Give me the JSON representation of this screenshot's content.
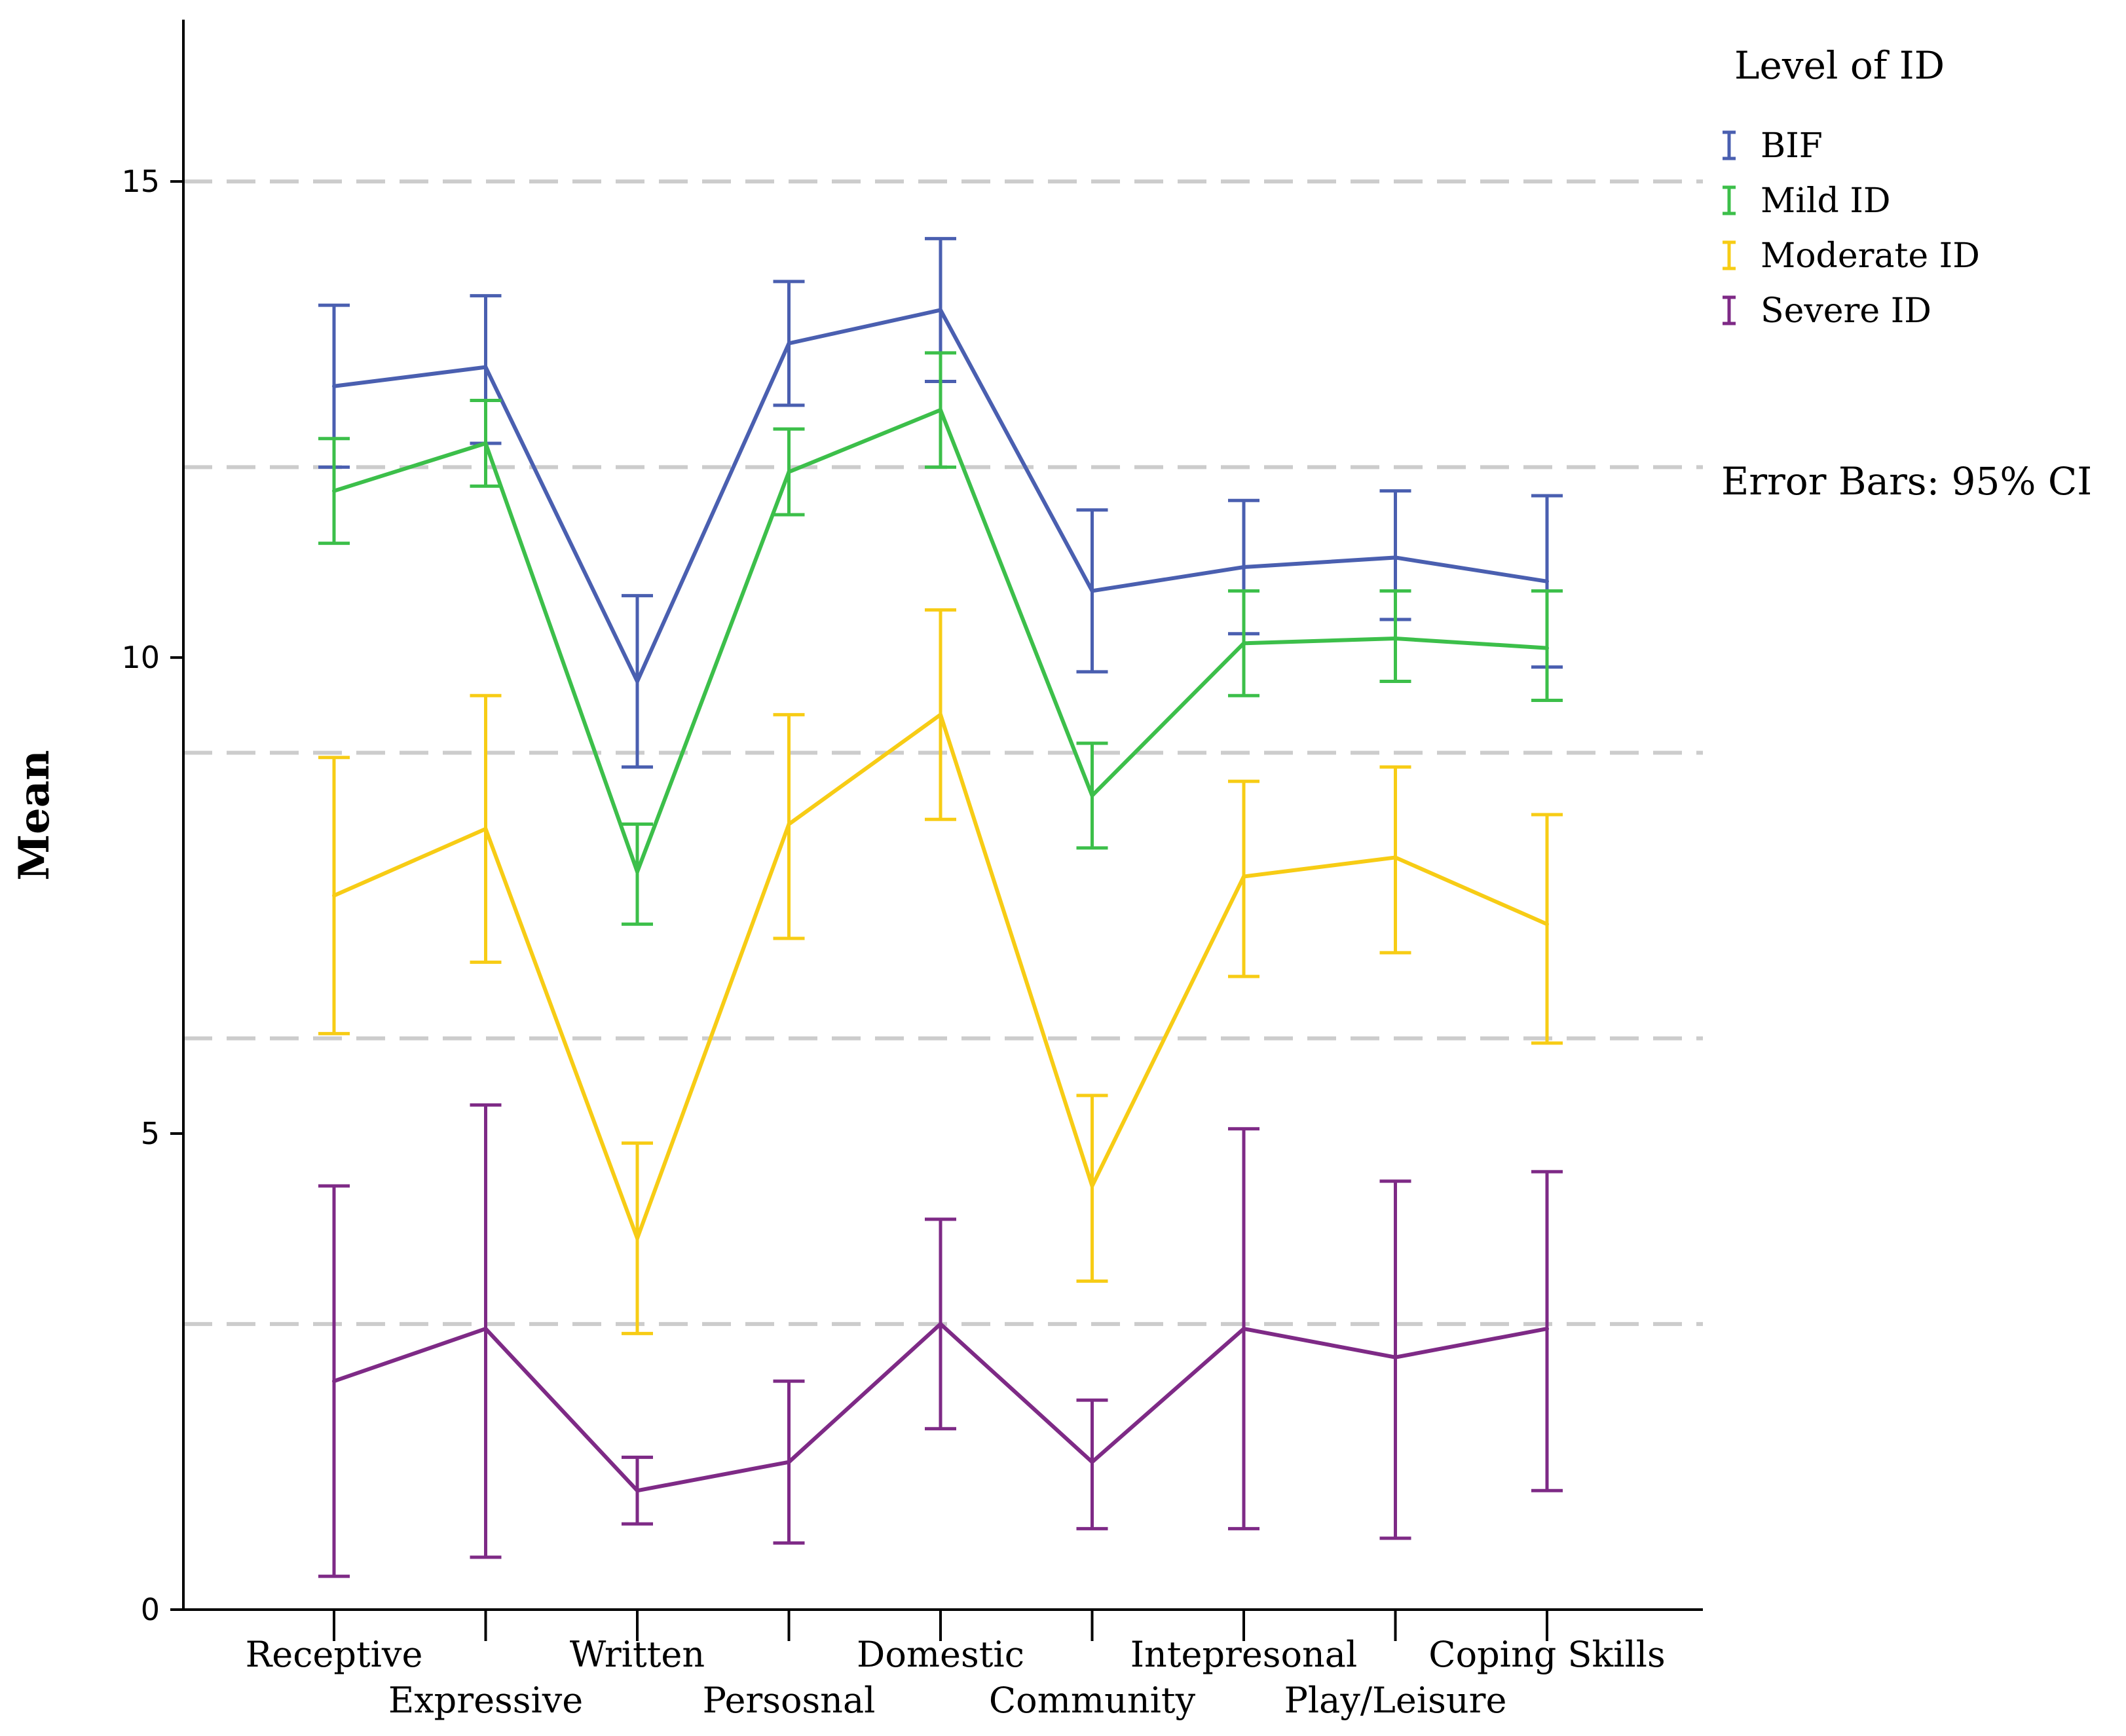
{
  "chart_data": {
    "type": "line",
    "title": "",
    "xlabel": "",
    "ylabel": "Mean",
    "ylim": [
      0,
      16.7
    ],
    "yticks": [
      0,
      5,
      10,
      15
    ],
    "reference_lines": [
      3,
      6,
      9,
      12,
      15
    ],
    "categories": [
      "Receptive",
      "Expressive",
      "Written",
      "Persosnal",
      "Domestic",
      "Community",
      "Intepresonal",
      "Play/Leisure",
      "Coping Skills"
    ],
    "legend_title": "Level of ID",
    "legend_position": "top-right",
    "note": "Error Bars: 95% CI",
    "series": [
      {
        "name": "BIF",
        "color": "#4a5fb0",
        "values": [
          12.85,
          13.05,
          9.75,
          13.3,
          13.65,
          10.7,
          10.95,
          11.05,
          10.8
        ],
        "ci_low": [
          12.0,
          12.25,
          8.85,
          12.65,
          12.9,
          9.85,
          10.25,
          10.4,
          9.9
        ],
        "ci_high": [
          13.7,
          13.8,
          10.65,
          13.95,
          14.4,
          11.55,
          11.65,
          11.75,
          11.7
        ]
      },
      {
        "name": "Mild ID",
        "color": "#3cbf4a",
        "values": [
          11.75,
          12.25,
          7.75,
          11.95,
          12.6,
          8.55,
          10.15,
          10.2,
          10.1
        ],
        "ci_low": [
          11.2,
          11.8,
          7.2,
          11.5,
          12.0,
          8.0,
          9.6,
          9.75,
          9.55
        ],
        "ci_high": [
          12.3,
          12.7,
          8.25,
          12.4,
          13.2,
          9.1,
          10.7,
          10.7,
          10.7
        ]
      },
      {
        "name": "Moderate ID",
        "color": "#f7cc15",
        "values": [
          7.5,
          8.2,
          3.9,
          8.25,
          9.4,
          4.45,
          7.7,
          7.9,
          7.2
        ],
        "ci_low": [
          6.05,
          6.8,
          2.9,
          7.05,
          8.3,
          3.45,
          6.65,
          6.9,
          5.95
        ],
        "ci_high": [
          8.95,
          9.6,
          4.9,
          9.4,
          10.5,
          5.4,
          8.7,
          8.85,
          8.35
        ]
      },
      {
        "name": "Severe ID",
        "color": "#7e2a86",
        "values": [
          2.4,
          2.95,
          1.25,
          1.55,
          3.0,
          1.55,
          2.95,
          2.65,
          2.95
        ],
        "ci_low": [
          0.35,
          0.55,
          0.9,
          0.7,
          1.9,
          0.85,
          0.85,
          0.75,
          1.25
        ],
        "ci_high": [
          4.45,
          5.3,
          1.6,
          2.4,
          4.1,
          2.2,
          5.05,
          4.5,
          4.6
        ]
      }
    ]
  }
}
